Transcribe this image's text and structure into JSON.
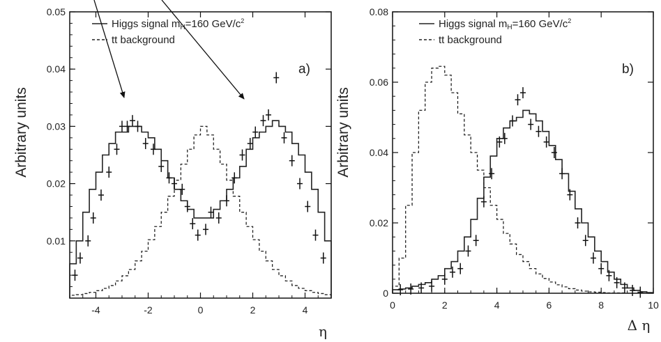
{
  "chart_data": [
    {
      "type": "line",
      "panel_label": "a)",
      "ylabel": "Arbitrary units",
      "xlabel": "η",
      "xlim": [
        -5,
        5
      ],
      "ylim": [
        0,
        0.05
      ],
      "xticks": [
        -4,
        -2,
        0,
        2,
        4
      ],
      "yticks": [
        0.01,
        0.02,
        0.03,
        0.04,
        0.05
      ],
      "ytick_labels": [
        "0.01",
        "0.02",
        "0.03",
        "0.04",
        "0.05"
      ],
      "legend": [
        {
          "label": "Higgs signal m",
          "sub": "H",
          "label_rest": "=160 GeV/c",
          "sup": "2",
          "style": "solid"
        },
        {
          "label": "tt background",
          "style": "dashed"
        }
      ],
      "legend_position": "top-left",
      "series": [
        {
          "key": "higgs",
          "style": "solid-step",
          "x": [
            -5,
            -4.75,
            -4.5,
            -4.25,
            -4,
            -3.75,
            -3.5,
            -3.25,
            -3,
            -2.75,
            -2.5,
            -2.25,
            -2,
            -1.75,
            -1.5,
            -1.25,
            -1,
            -0.75,
            -0.5,
            -0.25,
            0,
            0.25,
            0.5,
            0.75,
            1,
            1.25,
            1.5,
            1.75,
            2,
            2.25,
            2.5,
            2.75,
            3,
            3.25,
            3.5,
            3.75,
            4,
            4.25,
            4.5,
            4.75
          ],
          "values": [
            0.006,
            0.01,
            0.015,
            0.019,
            0.022,
            0.025,
            0.027,
            0.029,
            0.029,
            0.03,
            0.03,
            0.029,
            0.028,
            0.026,
            0.024,
            0.021,
            0.019,
            0.017,
            0.0155,
            0.014,
            0.014,
            0.014,
            0.0155,
            0.017,
            0.019,
            0.021,
            0.023,
            0.026,
            0.028,
            0.029,
            0.03,
            0.031,
            0.03,
            0.029,
            0.027,
            0.025,
            0.022,
            0.019,
            0.015,
            0.01
          ]
        },
        {
          "key": "ttbar",
          "style": "dashed-step",
          "x": [
            -5,
            -4.75,
            -4.5,
            -4.25,
            -4,
            -3.75,
            -3.5,
            -3.25,
            -3,
            -2.75,
            -2.5,
            -2.25,
            -2,
            -1.75,
            -1.5,
            -1.25,
            -1,
            -0.75,
            -0.5,
            -0.25,
            0,
            0.25,
            0.5,
            0.75,
            1,
            1.25,
            1.5,
            1.75,
            2,
            2.25,
            2.5,
            2.75,
            3,
            3.25,
            3.5,
            3.75,
            4,
            4.25,
            4.5,
            4.75
          ],
          "values": [
            0.0005,
            0.0006,
            0.0008,
            0.001,
            0.0013,
            0.0017,
            0.0022,
            0.003,
            0.0039,
            0.005,
            0.0065,
            0.0082,
            0.0102,
            0.0125,
            0.015,
            0.0178,
            0.0206,
            0.0234,
            0.026,
            0.0285,
            0.03,
            0.0285,
            0.026,
            0.0234,
            0.0206,
            0.0178,
            0.015,
            0.0125,
            0.0102,
            0.0082,
            0.0065,
            0.005,
            0.0039,
            0.003,
            0.0022,
            0.0017,
            0.0013,
            0.001,
            0.0008,
            0.0006
          ]
        },
        {
          "key": "data",
          "style": "crosses",
          "x": [
            -4.8,
            -4.6,
            -4.3,
            -4.1,
            -3.8,
            -3.5,
            -3.2,
            -3.0,
            -2.8,
            -2.6,
            -2.4,
            -2.1,
            -1.8,
            -1.5,
            -1.2,
            -1.0,
            -0.7,
            -0.5,
            -0.3,
            -0.1,
            0.2,
            0.4,
            0.7,
            1.0,
            1.3,
            1.6,
            1.9,
            2.1,
            2.4,
            2.6,
            2.9,
            3.2,
            3.5,
            3.8,
            4.1,
            4.4,
            4.7
          ],
          "values": [
            0.004,
            0.007,
            0.01,
            0.014,
            0.018,
            0.022,
            0.026,
            0.03,
            0.03,
            0.031,
            0.03,
            0.027,
            0.026,
            0.023,
            0.021,
            0.02,
            0.019,
            0.016,
            0.013,
            0.011,
            0.012,
            0.015,
            0.014,
            0.017,
            0.021,
            0.025,
            0.027,
            0.029,
            0.031,
            0.032,
            0.0385,
            0.028,
            0.024,
            0.02,
            0.016,
            0.011,
            0.007
          ]
        }
      ]
    },
    {
      "type": "line",
      "panel_label": "b)",
      "ylabel": "Arbitrary units",
      "xlabel": "Δ η",
      "xlim": [
        0,
        10
      ],
      "ylim": [
        0,
        0.08
      ],
      "xticks": [
        0,
        2,
        4,
        6,
        8,
        10
      ],
      "yticks": [
        0,
        0.02,
        0.04,
        0.06,
        0.08
      ],
      "ytick_labels": [
        "0",
        "0.02",
        "0.04",
        "0.06",
        "0.08"
      ],
      "legend": [
        {
          "label": "Higgs signal m",
          "sub": "H",
          "label_rest": "=160 GeV/c",
          "sup": "2",
          "style": "solid"
        },
        {
          "label": "tt background",
          "style": "dashed"
        }
      ],
      "legend_position": "top-right",
      "series": [
        {
          "key": "higgs",
          "style": "solid-step",
          "x": [
            0,
            0.25,
            0.5,
            0.75,
            1,
            1.25,
            1.5,
            1.75,
            2,
            2.25,
            2.5,
            2.75,
            3,
            3.25,
            3.5,
            3.75,
            4,
            4.25,
            4.5,
            4.75,
            5,
            5.25,
            5.5,
            5.75,
            6,
            6.25,
            6.5,
            6.75,
            7,
            7.25,
            7.5,
            7.75,
            8,
            8.25,
            8.5,
            8.75,
            9,
            9.25,
            9.5,
            9.75
          ],
          "values": [
            0.001,
            0.0012,
            0.0015,
            0.002,
            0.0025,
            0.003,
            0.004,
            0.005,
            0.007,
            0.009,
            0.012,
            0.016,
            0.021,
            0.027,
            0.033,
            0.039,
            0.044,
            0.047,
            0.049,
            0.05,
            0.052,
            0.051,
            0.049,
            0.046,
            0.042,
            0.038,
            0.034,
            0.029,
            0.024,
            0.02,
            0.016,
            0.012,
            0.009,
            0.006,
            0.004,
            0.0025,
            0.0015,
            0.0008,
            0.0004,
            0.0002
          ]
        },
        {
          "key": "ttbar",
          "style": "dashed-step",
          "x": [
            0,
            0.25,
            0.5,
            0.75,
            1,
            1.25,
            1.5,
            1.75,
            2,
            2.25,
            2.5,
            2.75,
            3,
            3.25,
            3.5,
            3.75,
            4,
            4.25,
            4.5,
            4.75,
            5,
            5.25,
            5.5,
            5.75,
            6,
            6.25,
            6.5,
            6.75,
            7,
            7.25,
            7.5,
            7.75,
            8,
            8.25,
            8.5,
            8.75,
            9,
            9.25,
            9.5,
            9.75
          ],
          "values": [
            0.002,
            0.01,
            0.025,
            0.04,
            0.052,
            0.06,
            0.064,
            0.0645,
            0.062,
            0.057,
            0.051,
            0.045,
            0.04,
            0.035,
            0.03,
            0.025,
            0.021,
            0.017,
            0.014,
            0.011,
            0.009,
            0.007,
            0.0055,
            0.0042,
            0.0032,
            0.0024,
            0.0018,
            0.0013,
            0.0009,
            0.0006,
            0.0004,
            0.0003,
            0.0002,
            0.0001,
            0.0001,
            0.0001,
            0,
            0,
            0,
            0
          ]
        },
        {
          "key": "data",
          "style": "crosses",
          "x": [
            0.3,
            0.7,
            1.1,
            1.5,
            2.0,
            2.3,
            2.6,
            2.9,
            3.2,
            3.5,
            3.8,
            4.1,
            4.3,
            4.6,
            4.8,
            5.0,
            5.3,
            5.6,
            5.9,
            6.2,
            6.5,
            6.8,
            7.1,
            7.4,
            7.7,
            8.0,
            8.3,
            8.6,
            8.9,
            9.2,
            9.5
          ],
          "values": [
            0.001,
            0.0012,
            0.0015,
            0.002,
            0.004,
            0.006,
            0.007,
            0.012,
            0.015,
            0.026,
            0.034,
            0.043,
            0.044,
            0.049,
            0.055,
            0.057,
            0.048,
            0.046,
            0.043,
            0.04,
            0.034,
            0.028,
            0.02,
            0.015,
            0.01,
            0.007,
            0.005,
            0.003,
            0.0015,
            0.0008,
            0.0003
          ]
        }
      ]
    }
  ],
  "arrows": {
    "count": 2,
    "description_labels": []
  }
}
